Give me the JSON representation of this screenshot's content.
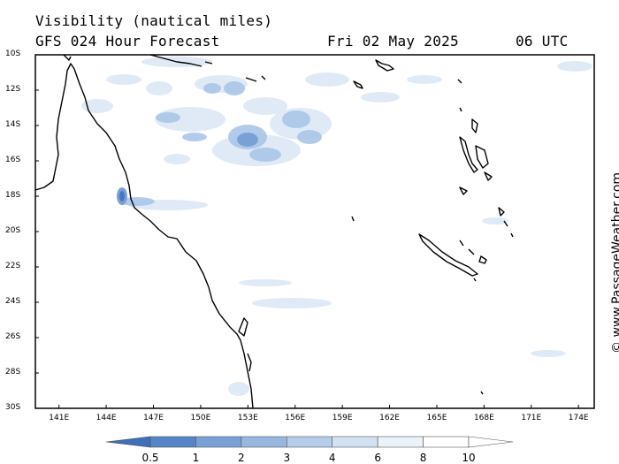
{
  "header": {
    "title": "Visibility (nautical miles)",
    "model": "GFS 024 Hour Forecast",
    "date": "Fri 02 May 2025",
    "time": "06 UTC"
  },
  "credit": "© www.PassageWeather.com",
  "map": {
    "lat_labels": [
      "10S",
      "12S",
      "14S",
      "16S",
      "18S",
      "20S",
      "22S",
      "24S",
      "26S",
      "28S",
      "30S"
    ],
    "lon_labels": [
      "141E",
      "144E",
      "147E",
      "150E",
      "153E",
      "156E",
      "159E",
      "162E",
      "165E",
      "168E",
      "171E",
      "174E"
    ],
    "lon_range": [
      139.5,
      175
    ],
    "lat_range": [
      -10,
      -30
    ],
    "fog_color_light": "#dce8f6",
    "fog_color_mid": "#aac6e8",
    "fog_color_dark": "#5f8fd0",
    "coast_color": "#000000"
  },
  "colorbar": {
    "labels": [
      "0.5",
      "1",
      "2",
      "3",
      "4",
      "6",
      "8",
      "10"
    ],
    "colors": [
      "#3f6fb8",
      "#5585c6",
      "#7aa1d6",
      "#97b7e0",
      "#b4cdea",
      "#d3e2f3",
      "#ebf2fa",
      "#ffffff"
    ]
  }
}
